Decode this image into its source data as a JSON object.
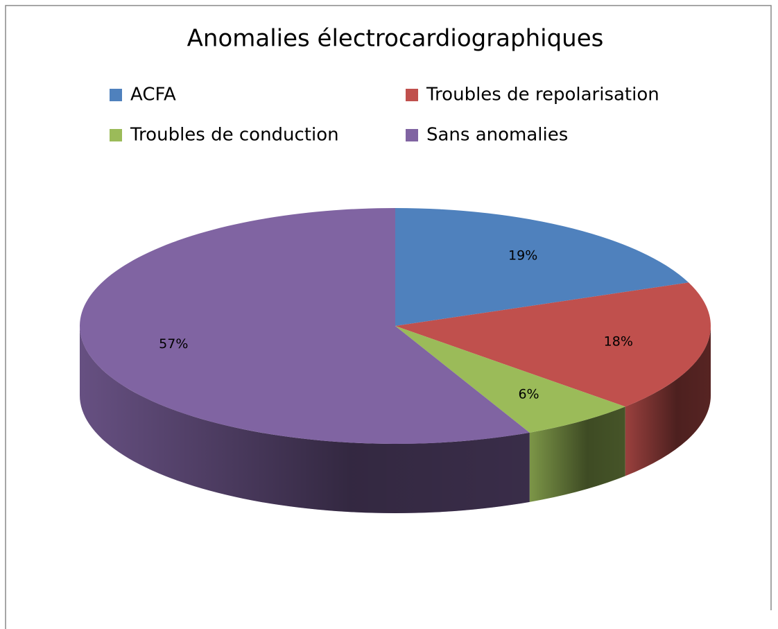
{
  "chart_data": {
    "type": "pie",
    "title": "Anomalies électrocardiographiques",
    "categories": [
      "ACFA",
      "Troubles de repolarisation",
      "Troubles de conduction",
      "Sans anomalies"
    ],
    "values": [
      19,
      18,
      6,
      57
    ],
    "value_labels": [
      "19%",
      "18%",
      "6%",
      "57%"
    ],
    "colors": [
      "#4f81bd",
      "#c0504d",
      "#9bbb59",
      "#8064a2"
    ],
    "legend": "top"
  }
}
